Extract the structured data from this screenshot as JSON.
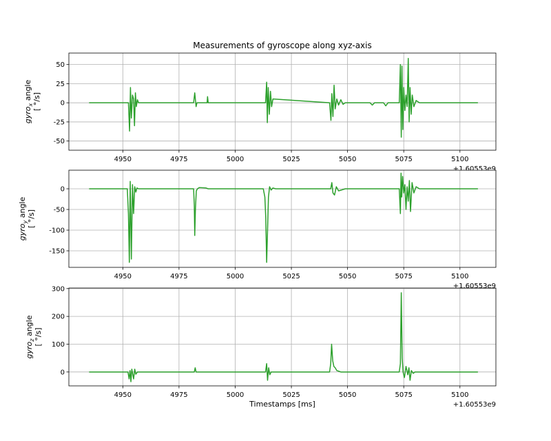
{
  "figure": {
    "title": "Measurements of gyroscope along xyz-axis",
    "xlabel": "Timestamps [ms]",
    "offset_label": "+1.60553e9",
    "line_color": "#2ca02c",
    "grid": true
  },
  "chart_data": [
    {
      "type": "line",
      "name_main": "gyro",
      "name_sub": "x",
      "name_suffix": " angle",
      "unit": "[ °/s]",
      "xlim": [
        4926,
        5116
      ],
      "ylim": [
        -62,
        65
      ],
      "xticks": [
        4950,
        4975,
        5000,
        5025,
        5050,
        5075,
        5100
      ],
      "yticks": [
        50,
        25,
        0,
        -25,
        -50
      ],
      "x": [
        4935,
        4952.5,
        4953,
        4953.4,
        4953.8,
        4954.3,
        4954.8,
        4955.2,
        4955.6,
        4956.0,
        4956.5,
        4957,
        4981.5,
        4982.0,
        4982.6,
        4983,
        4987.5,
        4987.7,
        4988,
        5013.5,
        5014.0,
        5014.3,
        5014.7,
        5015.2,
        5015.7,
        5016.2,
        5016.8,
        5042,
        5042.6,
        5043.0,
        5043.5,
        5044.0,
        5044.5,
        5045.2,
        5046,
        5047.0,
        5048.0,
        5049,
        5060,
        5061.0,
        5062,
        5066,
        5067.0,
        5068,
        5073,
        5073.5,
        5073.9,
        5074.2,
        5074.6,
        5075.0,
        5075.5,
        5076.0,
        5076.5,
        5077.0,
        5077.4,
        5077.8,
        5078.3,
        5078.8,
        5079.5,
        5080.5,
        5082,
        5108
      ],
      "y": [
        0,
        0,
        -37,
        20,
        -20,
        10,
        5,
        -30,
        13,
        -5,
        4,
        0,
        0,
        13,
        -5,
        0,
        0,
        8,
        0,
        0,
        27,
        -26,
        20,
        -15,
        15,
        -5,
        5,
        0,
        -23,
        12,
        -18,
        23,
        -8,
        5,
        -3,
        4,
        -2,
        0,
        0,
        -3,
        0,
        0,
        -4,
        0,
        0,
        50,
        -45,
        48,
        -35,
        20,
        -10,
        10,
        -5,
        58,
        -25,
        20,
        -15,
        10,
        -5,
        3,
        0,
        0
      ]
    },
    {
      "type": "line",
      "name_main": "gyro",
      "name_sub": "y",
      "name_suffix": " angle",
      "unit": "[ °/s]",
      "xlim": [
        4926,
        5116
      ],
      "ylim": [
        -190,
        45
      ],
      "xticks": [
        4950,
        4975,
        5000,
        5025,
        5050,
        5075,
        5100
      ],
      "yticks": [
        0,
        -50,
        -100,
        -150
      ],
      "x": [
        4935,
        4952.0,
        4952.5,
        4952.9,
        4953.3,
        4953.8,
        4954.3,
        4954.8,
        4955.3,
        4955.8,
        4956.3,
        4957,
        4981.5,
        4981.8,
        4982.0,
        4982.3,
        4982.7,
        4983.2,
        4984,
        4987,
        4988,
        5012.5,
        5013.2,
        5013.6,
        5014.0,
        5014.4,
        5014.8,
        5015.3,
        5016.0,
        5016.8,
        5018,
        5042.5,
        5043.0,
        5043.5,
        5044.2,
        5045.0,
        5046.0,
        5049,
        5073.0,
        5073.5,
        5073.8,
        5074.1,
        5074.5,
        5075.0,
        5075.5,
        5076.0,
        5076.5,
        5077.0,
        5077.5,
        5078.0,
        5078.7,
        5079.5,
        5080.5,
        5082,
        5108
      ],
      "y": [
        0,
        0,
        -60,
        -178,
        18,
        -170,
        10,
        -60,
        5,
        -8,
        2,
        0,
        0,
        -40,
        -113,
        -50,
        -5,
        0,
        3,
        2,
        0,
        0,
        -20,
        -70,
        -178,
        -100,
        -20,
        5,
        -3,
        2,
        0,
        0,
        15,
        -10,
        -15,
        5,
        -5,
        0,
        0,
        -60,
        38,
        -20,
        30,
        -10,
        10,
        -50,
        5,
        -30,
        20,
        -55,
        15,
        -10,
        5,
        0,
        0
      ]
    },
    {
      "type": "line",
      "name_main": "gyro",
      "name_sub": "z",
      "name_suffix": " angle",
      "unit": "[ °/s]",
      "xlim": [
        4926,
        5116
      ],
      "ylim": [
        -50,
        302
      ],
      "xticks": [
        4950,
        4975,
        5000,
        5025,
        5050,
        5075,
        5100
      ],
      "yticks": [
        300,
        200,
        100,
        0
      ],
      "x": [
        4935,
        4952.3,
        4952.8,
        4953.2,
        4953.6,
        4954.0,
        4954.8,
        4955.3,
        4955.8,
        4956.5,
        4981.8,
        4982.2,
        4982.6,
        5013.5,
        5014.0,
        5014.4,
        5014.9,
        5015.4,
        5016,
        5042.0,
        5042.5,
        5042.9,
        5043.4,
        5043.9,
        5044.5,
        5045.2,
        5046,
        5047,
        5048,
        5073.0,
        5073.5,
        5073.9,
        5074.3,
        5074.7,
        5075.3,
        5076.0,
        5076.8,
        5077.3,
        5077.8,
        5078.4,
        5079.2,
        5080,
        5108
      ],
      "y": [
        0,
        0,
        -25,
        5,
        -35,
        10,
        -25,
        10,
        -8,
        0,
        0,
        15,
        0,
        0,
        30,
        -30,
        15,
        -10,
        0,
        0,
        30,
        100,
        40,
        20,
        15,
        5,
        3,
        0,
        0,
        0,
        30,
        285,
        50,
        0,
        -20,
        20,
        -10,
        15,
        -30,
        5,
        -5,
        0,
        0
      ]
    }
  ]
}
